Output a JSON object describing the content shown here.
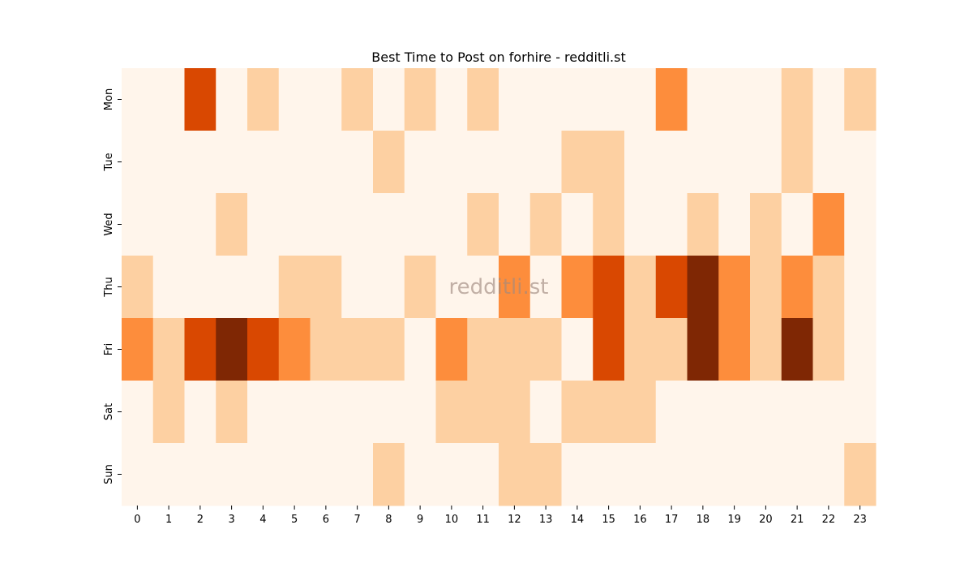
{
  "chart_data": {
    "type": "heatmap",
    "title": "Best Time to Post on forhire - redditli.st",
    "watermark": "redditli.st",
    "xlabel": "",
    "ylabel": "",
    "x_categories": [
      "0",
      "1",
      "2",
      "3",
      "4",
      "5",
      "6",
      "7",
      "8",
      "9",
      "10",
      "11",
      "12",
      "13",
      "14",
      "15",
      "16",
      "17",
      "18",
      "19",
      "20",
      "21",
      "22",
      "23"
    ],
    "y_categories": [
      "Mon",
      "Tue",
      "Wed",
      "Thu",
      "Fri",
      "Sat",
      "Sun"
    ],
    "values": [
      [
        0,
        0,
        3,
        0,
        1,
        0,
        0,
        1,
        0,
        1,
        0,
        1,
        0,
        0,
        0,
        0,
        0,
        2,
        0,
        0,
        0,
        1,
        0,
        1
      ],
      [
        0,
        0,
        0,
        0,
        0,
        0,
        0,
        0,
        1,
        0,
        0,
        0,
        0,
        0,
        1,
        1,
        0,
        0,
        0,
        0,
        0,
        1,
        0,
        0
      ],
      [
        0,
        0,
        0,
        1,
        0,
        0,
        0,
        0,
        0,
        0,
        0,
        1,
        0,
        1,
        0,
        1,
        0,
        0,
        1,
        0,
        1,
        0,
        2,
        0
      ],
      [
        1,
        0,
        0,
        0,
        0,
        1,
        1,
        0,
        0,
        1,
        0,
        0,
        2,
        0,
        2,
        3,
        1,
        3,
        4,
        2,
        1,
        2,
        1,
        0
      ],
      [
        2,
        1,
        3,
        4,
        3,
        2,
        1,
        1,
        1,
        0,
        2,
        1,
        1,
        1,
        0,
        3,
        1,
        1,
        4,
        2,
        1,
        4,
        1,
        0
      ],
      [
        0,
        1,
        0,
        1,
        0,
        0,
        0,
        0,
        0,
        0,
        1,
        1,
        1,
        0,
        1,
        1,
        1,
        0,
        0,
        0,
        0,
        0,
        0,
        0
      ],
      [
        0,
        0,
        0,
        0,
        0,
        0,
        0,
        0,
        1,
        0,
        0,
        0,
        1,
        1,
        0,
        0,
        0,
        0,
        0,
        0,
        0,
        0,
        0,
        1
      ]
    ],
    "value_range": [
      0,
      4
    ],
    "colormap": "Oranges",
    "color_scale": [
      "#fff5eb",
      "#fdd0a2",
      "#fd8d3c",
      "#d94801",
      "#7f2704"
    ],
    "grid": false,
    "legend": "none"
  }
}
